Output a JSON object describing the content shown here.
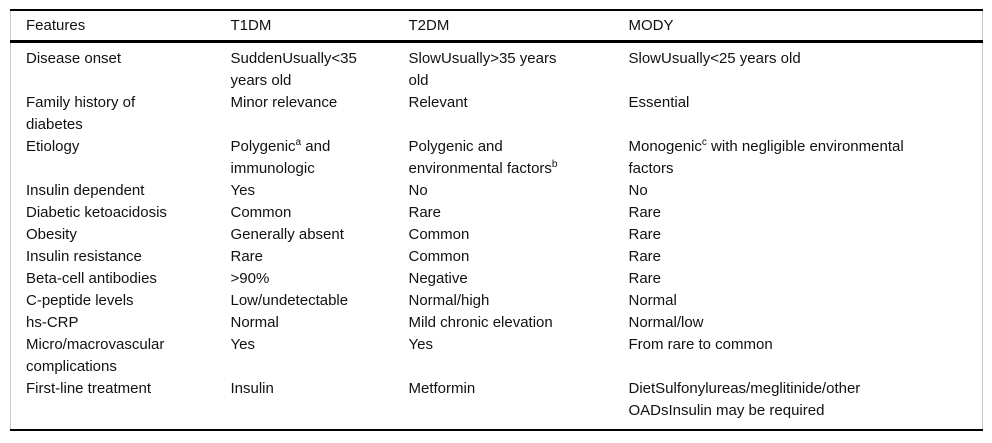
{
  "colors": {
    "background": "#ffffff",
    "text": "#111111",
    "heavy_rule": "#000000",
    "frame_rule": "#c9c9c9"
  },
  "table": {
    "headers": [
      "Features",
      "T1DM",
      "T2DM",
      "MODY"
    ],
    "rows": [
      [
        "Disease onset",
        "SuddenUsually<35\nyears old",
        "SlowUsually>35 years\nold",
        "SlowUsually<25 years old"
      ],
      [
        "Family history of\ndiabetes",
        "Minor relevance",
        "Relevant",
        "Essential"
      ],
      [
        "Etiology",
        "Polygenic^{a} and\nimmunologic",
        "Polygenic and\nenvironmental factors^{b}",
        "Monogenic^{c} with negligible environmental\nfactors"
      ],
      [
        "Insulin dependent",
        "Yes",
        "No",
        "No"
      ],
      [
        "Diabetic ketoacidosis",
        "Common",
        "Rare",
        "Rare"
      ],
      [
        "Obesity",
        "Generally absent",
        "Common",
        "Rare"
      ],
      [
        "Insulin resistance",
        "Rare",
        "Common",
        "Rare"
      ],
      [
        "Beta-cell antibodies",
        ">90%",
        "Negative",
        "Rare"
      ],
      [
        "C-peptide levels",
        "Low/undetectable",
        "Normal/high",
        "Normal"
      ],
      [
        "hs-CRP",
        "Normal",
        "Mild chronic elevation",
        "Normal/low"
      ],
      [
        "Micro/macrovascular\ncomplications",
        "Yes",
        "Yes",
        "From rare to common"
      ],
      [
        "First-line treatment",
        "Insulin",
        "Metformin",
        "DietSulfonylureas/meglitinide/other\nOADsInsulin may be required"
      ]
    ]
  }
}
